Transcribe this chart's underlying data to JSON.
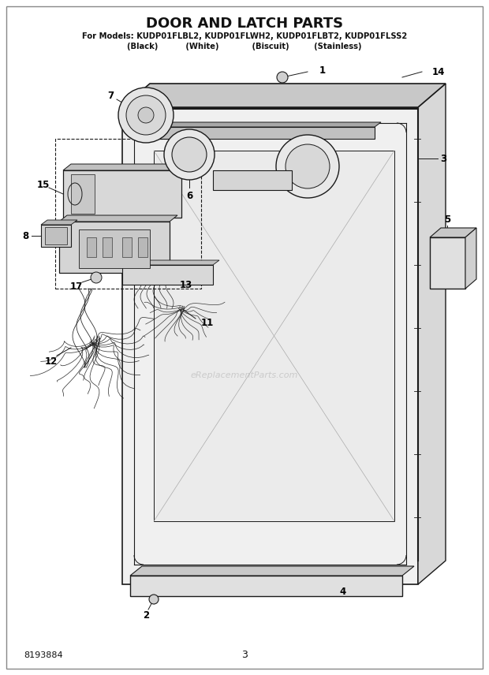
{
  "title": "DOOR AND LATCH PARTS",
  "subtitle1": "For Models: KUDP01FLBL2, KUDP01FLWH2, KUDP01FLBT2, KUDP01FLSS2",
  "subtitle2": "(Black)          (White)            (Biscuit)         (Stainless)",
  "part_number": "8193884",
  "page_number": "3",
  "bg_color": "#ffffff",
  "line_color": "#1a1a1a",
  "label_color": "#111111",
  "watermark": "eReplacementParts.com"
}
